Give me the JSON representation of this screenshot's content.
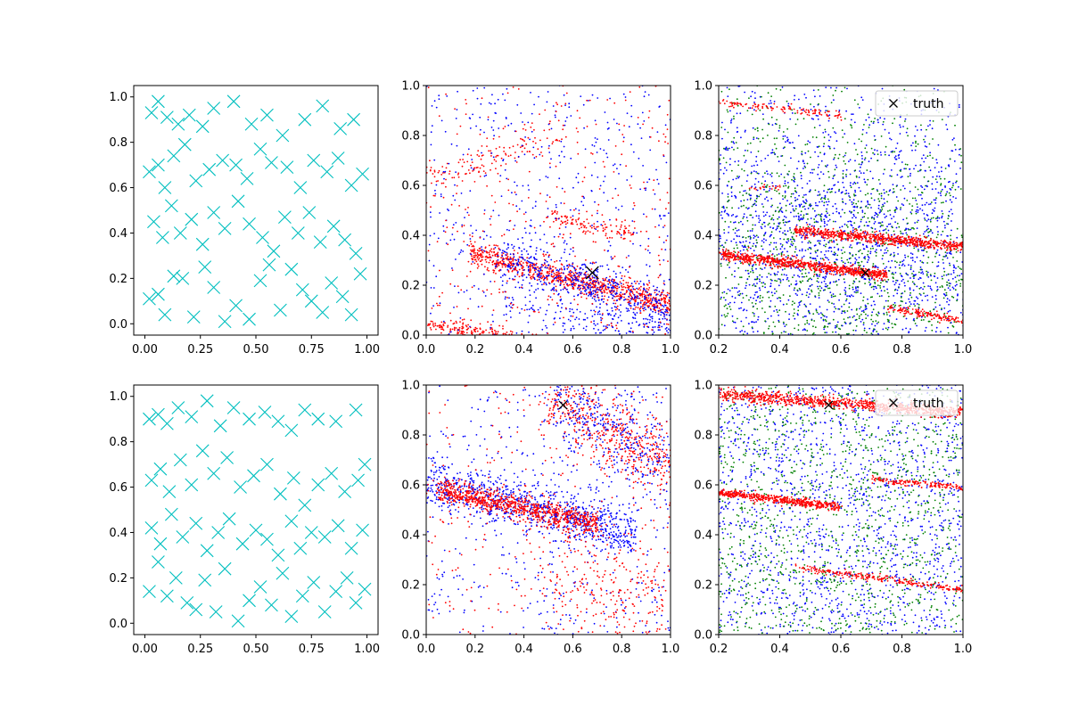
{
  "colors": {
    "grid_markers": "#00bfbf",
    "red": "#ff0000",
    "blue": "#0000ff",
    "green": "#008000",
    "truth": "#000000"
  },
  "chart_data": [
    {
      "id": "top-left",
      "type": "scatter",
      "marker": "x",
      "color": "#00bfbf",
      "xlim": [
        -0.05,
        1.05
      ],
      "ylim": [
        -0.05,
        1.05
      ],
      "xticks": [
        "0.00",
        "0.25",
        "0.50",
        "0.75",
        "1.00"
      ],
      "xtick_values": [
        0,
        0.25,
        0.5,
        0.75,
        1.0
      ],
      "yticks": [
        "0.0",
        "0.2",
        "0.4",
        "0.6",
        "0.8",
        "1.0"
      ],
      "ytick_values": [
        0,
        0.2,
        0.4,
        0.6,
        0.8,
        1.0
      ],
      "points": [
        [
          0.03,
          0.93
        ],
        [
          0.06,
          0.98
        ],
        [
          0.1,
          0.91
        ],
        [
          0.15,
          0.88
        ],
        [
          0.2,
          0.92
        ],
        [
          0.26,
          0.87
        ],
        [
          0.31,
          0.95
        ],
        [
          0.4,
          0.98
        ],
        [
          0.48,
          0.88
        ],
        [
          0.55,
          0.92
        ],
        [
          0.62,
          0.83
        ],
        [
          0.72,
          0.9
        ],
        [
          0.8,
          0.96
        ],
        [
          0.88,
          0.86
        ],
        [
          0.94,
          0.9
        ],
        [
          0.02,
          0.67
        ],
        [
          0.06,
          0.7
        ],
        [
          0.09,
          0.6
        ],
        [
          0.13,
          0.74
        ],
        [
          0.18,
          0.79
        ],
        [
          0.23,
          0.63
        ],
        [
          0.29,
          0.68
        ],
        [
          0.35,
          0.72
        ],
        [
          0.41,
          0.7
        ],
        [
          0.46,
          0.64
        ],
        [
          0.52,
          0.77
        ],
        [
          0.57,
          0.71
        ],
        [
          0.64,
          0.69
        ],
        [
          0.7,
          0.6
        ],
        [
          0.76,
          0.72
        ],
        [
          0.82,
          0.67
        ],
        [
          0.87,
          0.73
        ],
        [
          0.93,
          0.61
        ],
        [
          0.98,
          0.66
        ],
        [
          0.04,
          0.45
        ],
        [
          0.08,
          0.38
        ],
        [
          0.12,
          0.52
        ],
        [
          0.16,
          0.4
        ],
        [
          0.21,
          0.46
        ],
        [
          0.26,
          0.35
        ],
        [
          0.31,
          0.49
        ],
        [
          0.36,
          0.42
        ],
        [
          0.42,
          0.54
        ],
        [
          0.47,
          0.44
        ],
        [
          0.53,
          0.38
        ],
        [
          0.58,
          0.32
        ],
        [
          0.63,
          0.47
        ],
        [
          0.69,
          0.4
        ],
        [
          0.74,
          0.49
        ],
        [
          0.79,
          0.36
        ],
        [
          0.85,
          0.43
        ],
        [
          0.9,
          0.37
        ],
        [
          0.95,
          0.31
        ],
        [
          0.02,
          0.11
        ],
        [
          0.06,
          0.13
        ],
        [
          0.09,
          0.04
        ],
        [
          0.13,
          0.21
        ],
        [
          0.17,
          0.2
        ],
        [
          0.22,
          0.03
        ],
        [
          0.27,
          0.25
        ],
        [
          0.31,
          0.16
        ],
        [
          0.36,
          0.01
        ],
        [
          0.41,
          0.08
        ],
        [
          0.47,
          0.02
        ],
        [
          0.52,
          0.19
        ],
        [
          0.56,
          0.26
        ],
        [
          0.61,
          0.06
        ],
        [
          0.66,
          0.24
        ],
        [
          0.71,
          0.15
        ],
        [
          0.75,
          0.1
        ],
        [
          0.8,
          0.05
        ],
        [
          0.84,
          0.18
        ],
        [
          0.89,
          0.12
        ],
        [
          0.93,
          0.04
        ],
        [
          0.97,
          0.22
        ]
      ]
    },
    {
      "id": "top-middle",
      "type": "scatter",
      "xlim": [
        0,
        1
      ],
      "ylim": [
        0,
        1
      ],
      "xticks": [
        "0.0",
        "0.2",
        "0.4",
        "0.6",
        "0.8",
        "1.0"
      ],
      "xtick_values": [
        0,
        0.2,
        0.4,
        0.6,
        0.8,
        1.0
      ],
      "yticks": [
        "0.0",
        "0.2",
        "0.4",
        "0.6",
        "0.8",
        "1.0"
      ],
      "ytick_values": [
        0,
        0.2,
        0.4,
        0.6,
        0.8,
        1.0
      ],
      "bands": [
        {
          "color": "red",
          "from": [
            0.18,
            0.33
          ],
          "to": [
            1.0,
            0.12
          ],
          "width": 0.025,
          "n": 900
        },
        {
          "color": "blue",
          "from": [
            0.3,
            0.31
          ],
          "to": [
            1.0,
            0.1
          ],
          "width": 0.05,
          "n": 500
        },
        {
          "color": "red",
          "from": [
            0.0,
            0.04
          ],
          "to": [
            0.35,
            0.0
          ],
          "width": 0.015,
          "n": 150
        },
        {
          "color": "blue",
          "from": [
            0.3,
            0.12
          ],
          "to": [
            1.0,
            0.02
          ],
          "width": 0.04,
          "n": 150
        },
        {
          "color": "red",
          "from": [
            0.5,
            0.47
          ],
          "to": [
            0.85,
            0.4
          ],
          "width": 0.02,
          "n": 120
        },
        {
          "color": "red",
          "from": [
            0.0,
            0.62
          ],
          "to": [
            0.55,
            0.8
          ],
          "width": 0.03,
          "n": 120
        },
        {
          "color": "blue",
          "from": [
            0.0,
            0.0
          ],
          "to": [
            1.0,
            1.0
          ],
          "width": 0.5,
          "n": 500
        },
        {
          "color": "red",
          "from": [
            0.0,
            0.0
          ],
          "to": [
            1.0,
            1.0
          ],
          "width": 0.5,
          "n": 350
        }
      ],
      "truth": [
        0.68,
        0.25
      ],
      "truth_size": "large"
    },
    {
      "id": "top-right",
      "type": "scatter",
      "xlim": [
        0.2,
        1.0
      ],
      "ylim": [
        0,
        1
      ],
      "xticks": [
        "0.2",
        "0.4",
        "0.6",
        "0.8",
        "1.0"
      ],
      "xtick_values": [
        0.2,
        0.4,
        0.6,
        0.8,
        1.0
      ],
      "yticks": [
        "0.0",
        "0.2",
        "0.4",
        "0.6",
        "0.8",
        "1.0"
      ],
      "ytick_values": [
        0,
        0.2,
        0.4,
        0.6,
        0.8,
        1.0
      ],
      "bands": [
        {
          "color": "blue",
          "from": [
            0.2,
            0.4
          ],
          "to": [
            1.0,
            0.3
          ],
          "width": 0.22,
          "n": 1300
        },
        {
          "color": "green",
          "from": [
            0.2,
            0.3
          ],
          "to": [
            1.0,
            0.22
          ],
          "width": 0.3,
          "n": 1100
        },
        {
          "color": "blue",
          "from": [
            0.2,
            0.2
          ],
          "to": [
            1.0,
            0.95
          ],
          "width": 0.6,
          "n": 600
        },
        {
          "color": "green",
          "from": [
            0.2,
            0.1
          ],
          "to": [
            1.0,
            0.95
          ],
          "width": 0.6,
          "n": 400
        },
        {
          "color": "red",
          "from": [
            0.2,
            0.325
          ],
          "to": [
            0.75,
            0.24
          ],
          "width": 0.01,
          "n": 800
        },
        {
          "color": "red",
          "from": [
            0.45,
            0.42
          ],
          "to": [
            1.0,
            0.355
          ],
          "width": 0.01,
          "n": 700
        },
        {
          "color": "red",
          "from": [
            0.2,
            0.935
          ],
          "to": [
            0.6,
            0.88
          ],
          "width": 0.008,
          "n": 120
        },
        {
          "color": "red",
          "from": [
            0.75,
            0.11
          ],
          "to": [
            1.0,
            0.06
          ],
          "width": 0.008,
          "n": 150
        },
        {
          "color": "red",
          "from": [
            0.3,
            0.59
          ],
          "to": [
            0.4,
            0.59
          ],
          "width": 0.006,
          "n": 20
        }
      ],
      "truth": [
        0.68,
        0.25
      ],
      "truth_size": "small",
      "legend": {
        "label": "truth",
        "placement": "upper-right"
      }
    },
    {
      "id": "bottom-left",
      "type": "scatter",
      "marker": "x",
      "color": "#00bfbf",
      "xlim": [
        -0.05,
        1.05
      ],
      "ylim": [
        -0.05,
        1.05
      ],
      "xticks": [
        "0.00",
        "0.25",
        "0.50",
        "0.75",
        "1.00"
      ],
      "xtick_values": [
        0,
        0.25,
        0.5,
        0.75,
        1.0
      ],
      "yticks": [
        "0.0",
        "0.2",
        "0.4",
        "0.6",
        "0.8",
        "1.0"
      ],
      "ytick_values": [
        0,
        0.2,
        0.4,
        0.6,
        0.8,
        1.0
      ],
      "points": [
        [
          0.02,
          0.9
        ],
        [
          0.06,
          0.92
        ],
        [
          0.1,
          0.88
        ],
        [
          0.15,
          0.95
        ],
        [
          0.21,
          0.91
        ],
        [
          0.28,
          0.98
        ],
        [
          0.34,
          0.87
        ],
        [
          0.4,
          0.95
        ],
        [
          0.47,
          0.9
        ],
        [
          0.54,
          0.93
        ],
        [
          0.6,
          0.89
        ],
        [
          0.66,
          0.85
        ],
        [
          0.72,
          0.94
        ],
        [
          0.78,
          0.9
        ],
        [
          0.86,
          0.89
        ],
        [
          0.95,
          0.94
        ],
        [
          0.03,
          0.63
        ],
        [
          0.07,
          0.68
        ],
        [
          0.11,
          0.58
        ],
        [
          0.16,
          0.72
        ],
        [
          0.21,
          0.61
        ],
        [
          0.26,
          0.76
        ],
        [
          0.31,
          0.66
        ],
        [
          0.37,
          0.73
        ],
        [
          0.43,
          0.6
        ],
        [
          0.49,
          0.65
        ],
        [
          0.55,
          0.7
        ],
        [
          0.61,
          0.57
        ],
        [
          0.67,
          0.64
        ],
        [
          0.72,
          0.52
        ],
        [
          0.78,
          0.61
        ],
        [
          0.84,
          0.66
        ],
        [
          0.9,
          0.58
        ],
        [
          0.96,
          0.63
        ],
        [
          0.99,
          0.7
        ],
        [
          0.03,
          0.42
        ],
        [
          0.07,
          0.35
        ],
        [
          0.12,
          0.48
        ],
        [
          0.17,
          0.38
        ],
        [
          0.23,
          0.44
        ],
        [
          0.28,
          0.32
        ],
        [
          0.33,
          0.4
        ],
        [
          0.38,
          0.46
        ],
        [
          0.44,
          0.35
        ],
        [
          0.5,
          0.41
        ],
        [
          0.55,
          0.37
        ],
        [
          0.6,
          0.3
        ],
        [
          0.66,
          0.45
        ],
        [
          0.7,
          0.33
        ],
        [
          0.75,
          0.4
        ],
        [
          0.81,
          0.38
        ],
        [
          0.87,
          0.43
        ],
        [
          0.93,
          0.33
        ],
        [
          0.98,
          0.41
        ],
        [
          0.02,
          0.14
        ],
        [
          0.06,
          0.27
        ],
        [
          0.1,
          0.12
        ],
        [
          0.14,
          0.2
        ],
        [
          0.19,
          0.09
        ],
        [
          0.23,
          0.06
        ],
        [
          0.27,
          0.19
        ],
        [
          0.32,
          0.05
        ],
        [
          0.36,
          0.24
        ],
        [
          0.42,
          0.01
        ],
        [
          0.47,
          0.1
        ],
        [
          0.52,
          0.16
        ],
        [
          0.57,
          0.08
        ],
        [
          0.62,
          0.22
        ],
        [
          0.66,
          0.03
        ],
        [
          0.71,
          0.12
        ],
        [
          0.76,
          0.18
        ],
        [
          0.81,
          0.05
        ],
        [
          0.86,
          0.14
        ],
        [
          0.91,
          0.2
        ],
        [
          0.95,
          0.09
        ],
        [
          0.99,
          0.15
        ]
      ]
    },
    {
      "id": "bottom-middle",
      "type": "scatter",
      "xlim": [
        0,
        1
      ],
      "ylim": [
        0,
        1
      ],
      "xticks": [
        "0.0",
        "0.2",
        "0.4",
        "0.6",
        "0.8",
        "1.0"
      ],
      "xtick_values": [
        0,
        0.2,
        0.4,
        0.6,
        0.8,
        1.0
      ],
      "yticks": [
        "0.0",
        "0.2",
        "0.4",
        "0.6",
        "0.8",
        "1.0"
      ],
      "ytick_values": [
        0,
        0.2,
        0.4,
        0.6,
        0.8,
        1.0
      ],
      "bands": [
        {
          "color": "blue",
          "from": [
            0.0,
            0.62
          ],
          "to": [
            0.85,
            0.4
          ],
          "width": 0.05,
          "n": 900
        },
        {
          "color": "red",
          "from": [
            0.05,
            0.58
          ],
          "to": [
            0.7,
            0.44
          ],
          "width": 0.025,
          "n": 900
        },
        {
          "color": "red",
          "from": [
            0.5,
            0.95
          ],
          "to": [
            1.0,
            0.68
          ],
          "width": 0.08,
          "n": 500
        },
        {
          "color": "blue",
          "from": [
            0.5,
            0.98
          ],
          "to": [
            1.0,
            0.7
          ],
          "width": 0.09,
          "n": 350
        },
        {
          "color": "blue",
          "from": [
            0.0,
            0.0
          ],
          "to": [
            1.0,
            1.0
          ],
          "width": 0.5,
          "n": 450
        },
        {
          "color": "red",
          "from": [
            0.0,
            0.0
          ],
          "to": [
            1.0,
            1.0
          ],
          "width": 0.5,
          "n": 300
        },
        {
          "color": "red",
          "from": [
            0.5,
            0.25
          ],
          "to": [
            1.0,
            0.1
          ],
          "width": 0.12,
          "n": 250
        }
      ],
      "truth": [
        0.56,
        0.92
      ],
      "truth_size": "small"
    },
    {
      "id": "bottom-right",
      "type": "scatter",
      "xlim": [
        0.2,
        1.0
      ],
      "ylim": [
        0,
        1
      ],
      "xticks": [
        "0.2",
        "0.4",
        "0.6",
        "0.8",
        "1.0"
      ],
      "xtick_values": [
        0.2,
        0.4,
        0.6,
        0.8,
        1.0
      ],
      "yticks": [
        "0.0",
        "0.2",
        "0.4",
        "0.6",
        "0.8",
        "1.0"
      ],
      "ytick_values": [
        0,
        0.2,
        0.4,
        0.6,
        0.8,
        1.0
      ],
      "bands": [
        {
          "color": "blue",
          "from": [
            0.2,
            0.0
          ],
          "to": [
            1.0,
            1.0
          ],
          "width": 0.5,
          "n": 1500
        },
        {
          "color": "green",
          "from": [
            0.2,
            0.0
          ],
          "to": [
            1.0,
            1.0
          ],
          "width": 0.5,
          "n": 1200
        },
        {
          "color": "red",
          "from": [
            0.2,
            0.965
          ],
          "to": [
            1.0,
            0.89
          ],
          "width": 0.012,
          "n": 900
        },
        {
          "color": "red",
          "from": [
            0.2,
            0.57
          ],
          "to": [
            0.6,
            0.51
          ],
          "width": 0.008,
          "n": 500
        },
        {
          "color": "red",
          "from": [
            0.7,
            0.62
          ],
          "to": [
            1.0,
            0.59
          ],
          "width": 0.006,
          "n": 150
        },
        {
          "color": "red",
          "from": [
            0.45,
            0.27
          ],
          "to": [
            1.0,
            0.18
          ],
          "width": 0.007,
          "n": 250
        }
      ],
      "truth": [
        0.56,
        0.92
      ],
      "truth_size": "small",
      "legend": {
        "label": "truth",
        "placement": "upper-right"
      }
    }
  ]
}
